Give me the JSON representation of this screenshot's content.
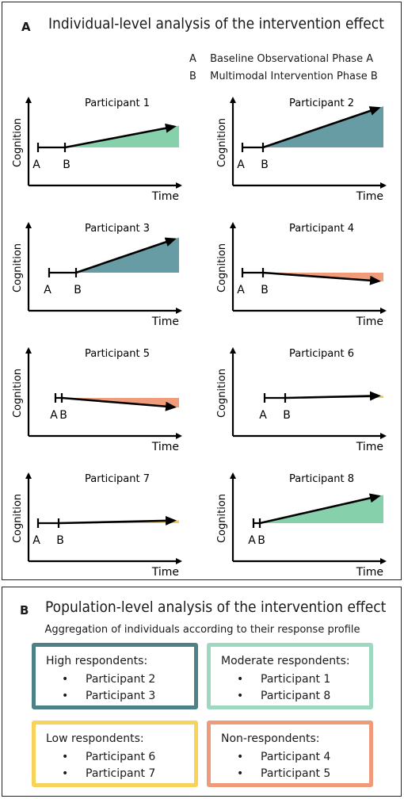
{
  "panel_a": {
    "letter": "A",
    "title": "Individual-level analysis of the intervention effect",
    "legend": [
      {
        "key": "A",
        "label": "Baseline Observational Phase A"
      },
      {
        "key": "B",
        "label": "Multimodal Intervention Phase B"
      }
    ],
    "y_axis_label": "Cognition",
    "x_axis_label": "Time",
    "phase_a_label": "A",
    "phase_b_label": "B"
  },
  "colors": {
    "high": "#5f97a0",
    "moderate": "#7fcfa8",
    "low": "#f5c84a",
    "non": "#ef9673",
    "high_border": "#4e8088",
    "moderate_border": "#9fd8c0",
    "low_border": "#f7d35a",
    "non_border": "#ef9a7a"
  },
  "participants": [
    {
      "label": "Participant 1",
      "response": "moderate",
      "slope": 0.42
    },
    {
      "label": "Participant 2",
      "response": "high",
      "slope": 0.75
    },
    {
      "label": "Participant 3",
      "response": "high",
      "slope": 0.75
    },
    {
      "label": "Participant 4",
      "response": "non",
      "slope": -0.16
    },
    {
      "label": "Participant 5",
      "response": "non",
      "slope": -0.18
    },
    {
      "label": "Participant 6",
      "response": "low",
      "slope": 0.05
    },
    {
      "label": "Participant 7",
      "response": "low",
      "slope": 0.05
    },
    {
      "label": "Participant 8",
      "response": "moderate",
      "slope": 0.5
    }
  ],
  "panel_b": {
    "letter": "B",
    "title": "Population-level analysis of the intervention effect",
    "subtitle": "Aggregation of individuals according to their response profile",
    "groups": [
      {
        "title": "High respondents:",
        "members": [
          "Participant 2",
          "Participant 3"
        ]
      },
      {
        "title": "Moderate respondents:",
        "members": [
          "Participant 1",
          "Participant 8"
        ]
      },
      {
        "title": "Low respondents:",
        "members": [
          "Participant 6",
          "Participant 7"
        ]
      },
      {
        "title": "Non-respondents:",
        "members": [
          "Participant 4",
          "Participant 5"
        ]
      }
    ],
    "bullet": "•"
  }
}
